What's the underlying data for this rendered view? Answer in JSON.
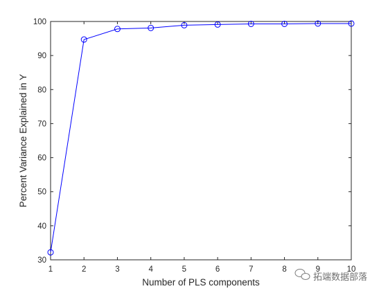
{
  "chart_data": {
    "type": "line",
    "xlabel": "Number of PLS components",
    "ylabel": "Percent Variance Explained in Y",
    "xlim": [
      1,
      10
    ],
    "ylim": [
      30,
      100
    ],
    "x_ticks": [
      "1",
      "2",
      "3",
      "4",
      "5",
      "6",
      "7",
      "8",
      "9",
      "10"
    ],
    "y_ticks": [
      "30",
      "40",
      "50",
      "60",
      "70",
      "80",
      "90",
      "100"
    ],
    "x": [
      1,
      2,
      3,
      4,
      5,
      6,
      7,
      8,
      9,
      10
    ],
    "series": [
      {
        "values": [
          32.2,
          94.7,
          97.8,
          98.1,
          98.9,
          99.1,
          99.3,
          99.3,
          99.4,
          99.4
        ],
        "color": "#0000ff",
        "marker": "circle"
      }
    ],
    "grid": false,
    "legend": "none"
  },
  "watermark": {
    "text": "拓端数据部落",
    "icon": "chat-bubble-icon"
  },
  "colors": {
    "axis": "#262626",
    "line": "#0000ff",
    "background": "#ffffff"
  }
}
